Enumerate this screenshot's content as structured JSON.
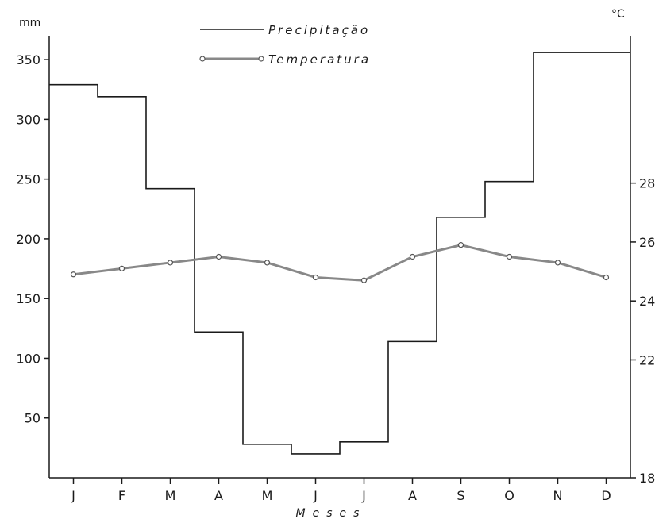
{
  "chart_data": {
    "type": "line",
    "title": "",
    "xlabel": "Meses",
    "categories": [
      "J",
      "F",
      "M",
      "A",
      "M",
      "J",
      "J",
      "A",
      "S",
      "O",
      "N",
      "D"
    ],
    "left_axis": {
      "unit": "mm",
      "ticks": [
        50,
        100,
        150,
        200,
        250,
        300,
        350
      ],
      "ylim": [
        0,
        370
      ]
    },
    "right_axis": {
      "unit": "°C",
      "ticks": [
        18,
        22,
        24,
        26,
        28
      ],
      "ylim": [
        18,
        33
      ]
    },
    "series": [
      {
        "name": "Precipitação",
        "style": "step",
        "axis": "left",
        "color": "#1a1a1a",
        "values": [
          329,
          319,
          242,
          122,
          28,
          20,
          30,
          114,
          218,
          248,
          356,
          356
        ]
      },
      {
        "name": "Temperatura",
        "style": "line-marker",
        "axis": "right",
        "color": "#888888",
        "values": [
          24.9,
          25.1,
          25.3,
          25.5,
          25.3,
          24.8,
          24.7,
          25.5,
          25.9,
          25.5,
          25.3,
          24.8
        ]
      }
    ],
    "legend": {
      "position": "top-center",
      "entries": [
        "Precipitação",
        "Temperatura"
      ]
    },
    "grid": false
  }
}
